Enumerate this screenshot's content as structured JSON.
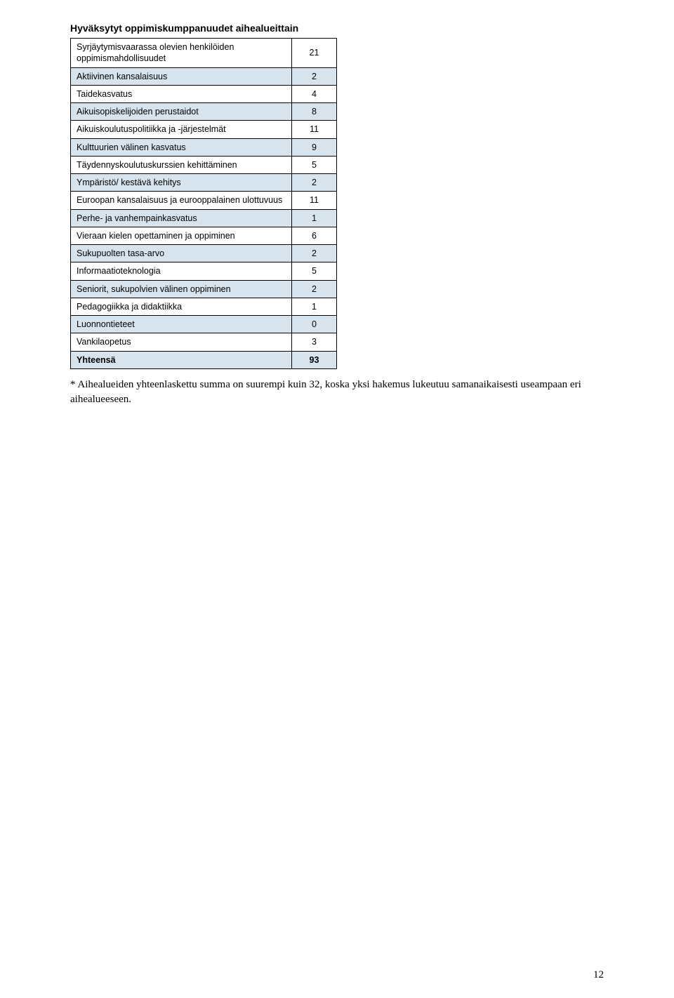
{
  "table": {
    "title": "Hyväksytyt oppimiskumppanuudet aihealueittain",
    "rows": [
      {
        "label": "Syrjäytymisvaarassa olevien henkilöiden oppimismahdollisuudet",
        "value": "21",
        "tinted": false
      },
      {
        "label": "Aktiivinen kansalaisuus",
        "value": "2",
        "tinted": true
      },
      {
        "label": "Taidekasvatus",
        "value": "4",
        "tinted": false
      },
      {
        "label": "Aikuisopiskelijoiden perustaidot",
        "value": "8",
        "tinted": true
      },
      {
        "label": "Aikuiskoulutuspolitiikka ja  -järjestelmät",
        "value": "11",
        "tinted": false
      },
      {
        "label": "Kulttuurien välinen kasvatus",
        "value": "9",
        "tinted": true
      },
      {
        "label": "Täydennyskoulutuskurssien kehittäminen",
        "value": "5",
        "tinted": false
      },
      {
        "label": "Ympäristö/ kestävä kehitys",
        "value": "2",
        "tinted": true
      },
      {
        "label": "Euroopan kansalaisuus ja eurooppalainen ulottuvuus",
        "value": "11",
        "tinted": false
      },
      {
        "label": "Perhe- ja vanhempainkasvatus",
        "value": "1",
        "tinted": true
      },
      {
        "label": "Vieraan kielen opettaminen ja oppiminen",
        "value": "6",
        "tinted": false
      },
      {
        "label": "Sukupuolten tasa-arvo",
        "value": "2",
        "tinted": true
      },
      {
        "label": "Informaatioteknologia",
        "value": "5",
        "tinted": false
      },
      {
        "label": "Seniorit, sukupolvien välinen oppiminen",
        "value": "2",
        "tinted": true
      },
      {
        "label": "Pedagogiikka ja didaktiikka",
        "value": "1",
        "tinted": false
      },
      {
        "label": "Luonnontieteet",
        "value": "0",
        "tinted": true
      },
      {
        "label": "Vankilaopetus",
        "value": "3",
        "tinted": false
      }
    ],
    "total": {
      "label": "Yhteensä",
      "value": "93"
    }
  },
  "footnote": "* Aihealueiden yhteenlaskettu summa on suurempi kuin 32, koska yksi hakemus lukeutuu samanaikaisesti useampaan eri aihealueeseen.",
  "page_number": "12"
}
